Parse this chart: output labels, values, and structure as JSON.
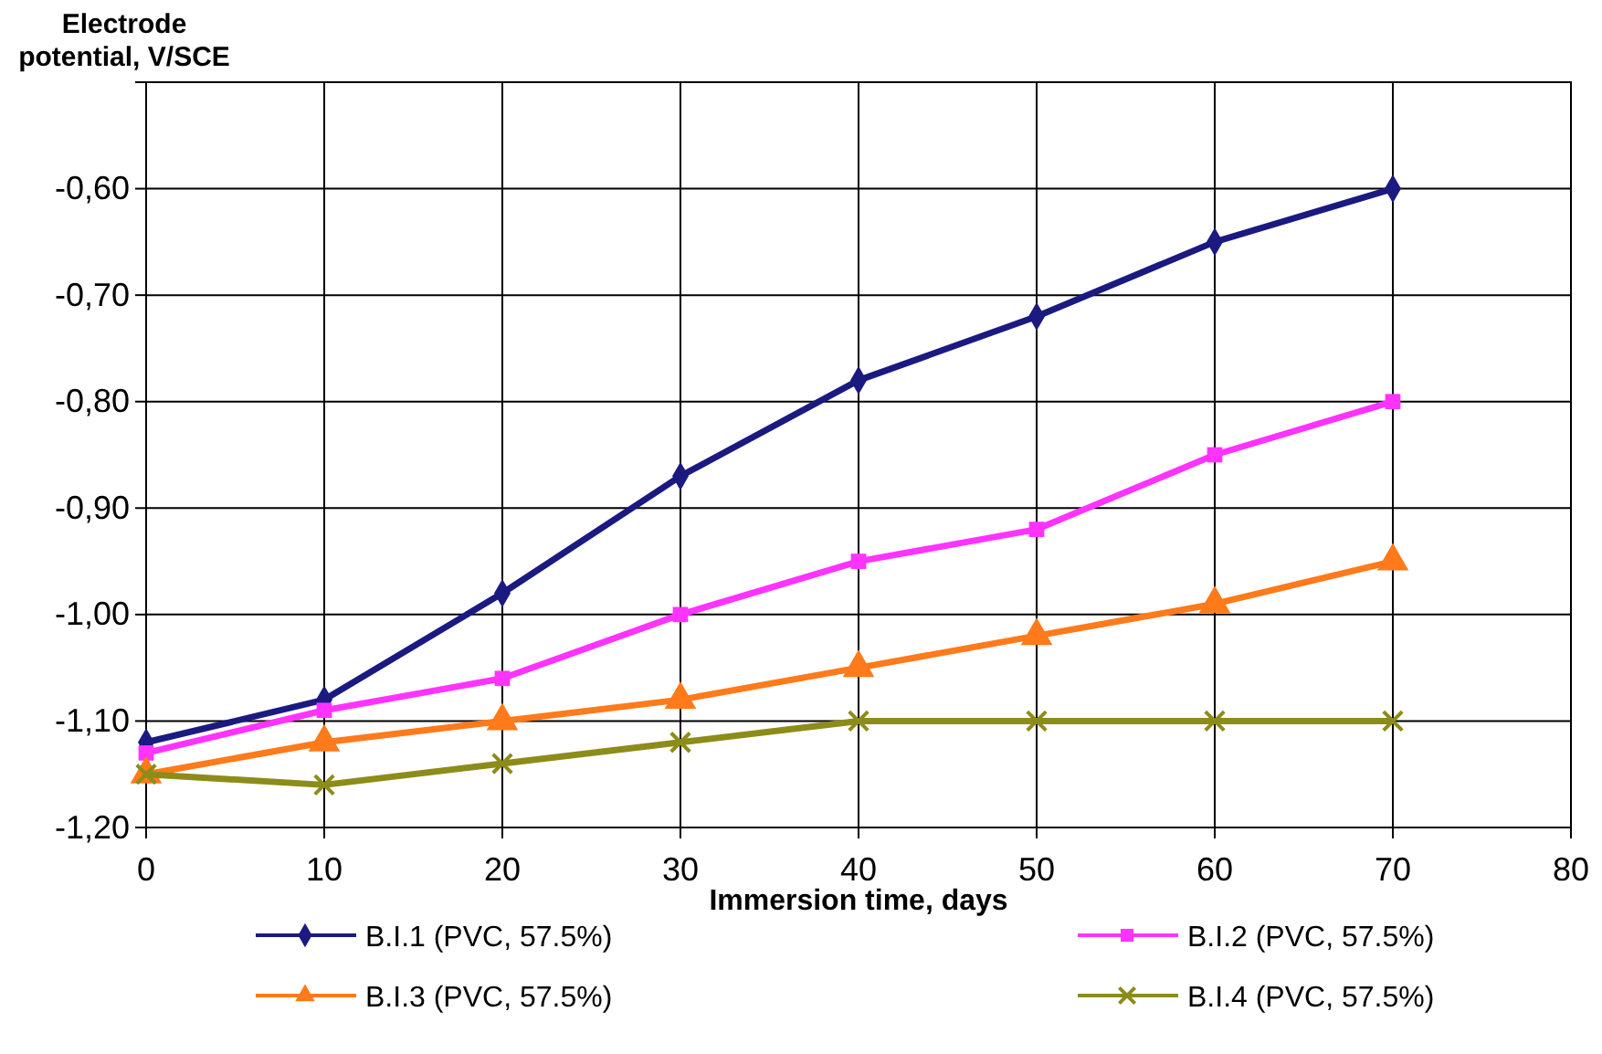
{
  "chart_data": {
    "type": "line",
    "xlabel": "Immersion time, days",
    "ylabel": "Electrode potential, V/SCE",
    "x": [
      0,
      10,
      20,
      30,
      40,
      50,
      60,
      70
    ],
    "xlim": [
      0,
      80
    ],
    "xticks": [
      0,
      10,
      20,
      30,
      40,
      50,
      60,
      70,
      80
    ],
    "ylim": [
      -1.2,
      -0.5
    ],
    "yticks": [
      {
        "value": -1.2,
        "label": "-1,20"
      },
      {
        "value": -1.1,
        "label": "-1,10"
      },
      {
        "value": -1.0,
        "label": "-1,00"
      },
      {
        "value": -0.9,
        "label": "-0,90"
      },
      {
        "value": -0.8,
        "label": "-0,80"
      },
      {
        "value": -0.7,
        "label": "-0,70"
      },
      {
        "value": -0.6,
        "label": "-0,60"
      },
      {
        "value": -0.5,
        "label": null
      }
    ],
    "grid": true,
    "legend": "bottom",
    "line_style": "solid",
    "series": [
      {
        "name": "B.I.1 (PVC, 57.5%)",
        "color": "#1a1a80",
        "marker": "diamond",
        "values": [
          -1.12,
          -1.08,
          -0.98,
          -0.87,
          -0.78,
          -0.72,
          -0.65,
          -0.6
        ]
      },
      {
        "name": "B.I.2 (PVC, 57.5%)",
        "color": "#ff33ff",
        "marker": "square",
        "values": [
          -1.13,
          -1.09,
          -1.06,
          -1.0,
          -0.95,
          -0.92,
          -0.85,
          -0.8
        ]
      },
      {
        "name": "B.I.3 (PVC, 57.5%)",
        "color": "#ff7a1a",
        "marker": "triangle",
        "values": [
          -1.15,
          -1.12,
          -1.1,
          -1.08,
          -1.05,
          -1.02,
          -0.99,
          -0.95
        ]
      },
      {
        "name": "B.I.4 (PVC, 57.5%)",
        "color": "#8c8c1a",
        "marker": "cross",
        "values": [
          -1.15,
          -1.16,
          -1.14,
          -1.12,
          -1.1,
          -1.1,
          -1.1,
          -1.1
        ]
      }
    ]
  }
}
